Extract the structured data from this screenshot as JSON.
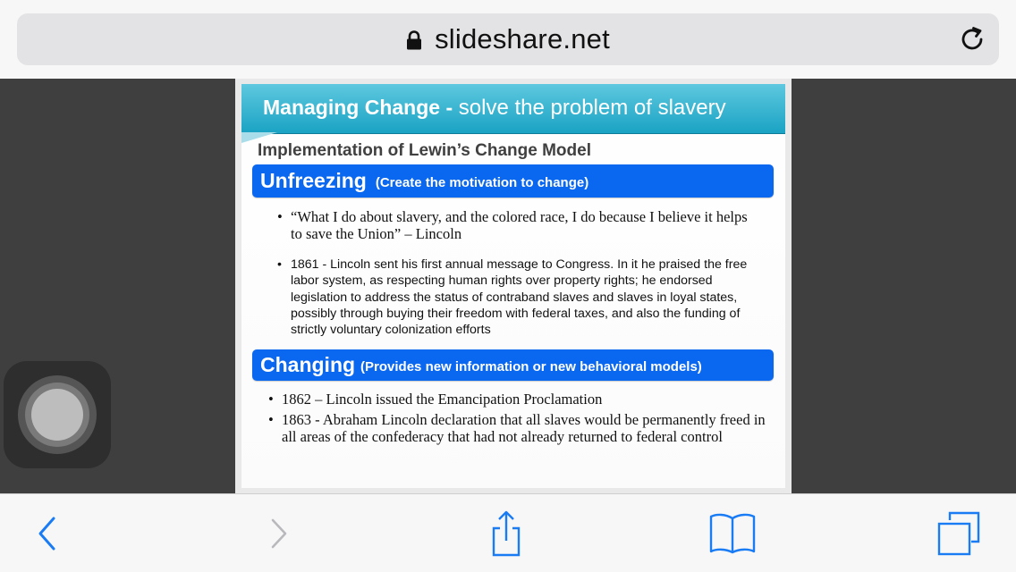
{
  "browser": {
    "url": "slideshare.net",
    "icons": {
      "lock": "lock-icon",
      "reload": "reload-icon"
    }
  },
  "slide": {
    "title_bold": "Managing Change -",
    "title_rest": " solve the problem of slavery",
    "subtitle": "Implementation of Lewin’s Change Model",
    "sections": [
      {
        "heading": "Unfreezing",
        "note": "(Create the motivation to change)",
        "bullets": [
          "“What I do about slavery, and the colored race, I do because I believe it helps to save the Union” – Lincoln",
          "1861 -  Lincoln sent his first annual message to Congress. In it he praised the free labor system, as respecting human rights over property rights; he endorsed legislation to address the status of contraband slaves and slaves in loyal states, possibly through buying their freedom with federal taxes, and also the funding of strictly voluntary colonization efforts"
        ]
      },
      {
        "heading": "Changing",
        "note": "(Provides new information or new behavioral models)",
        "bullets": [
          "1862 – Lincoln issued the Emancipation Proclamation",
          "1863 - Abraham Lincoln declaration that all slaves would be permanently freed in all areas of the confederacy that had not already returned to federal control"
        ]
      }
    ],
    "bullet_symbol": "•",
    "colors": {
      "header": "#1aa3c4",
      "bar": "#0a67f0"
    }
  },
  "toolbar": {
    "icons": [
      "back-icon",
      "forward-icon",
      "share-icon",
      "bookmarks-icon",
      "tabs-icon"
    ],
    "accent": "#1a7cf5"
  },
  "assistive_touch": {
    "icon": "assistive-touch-icon"
  }
}
